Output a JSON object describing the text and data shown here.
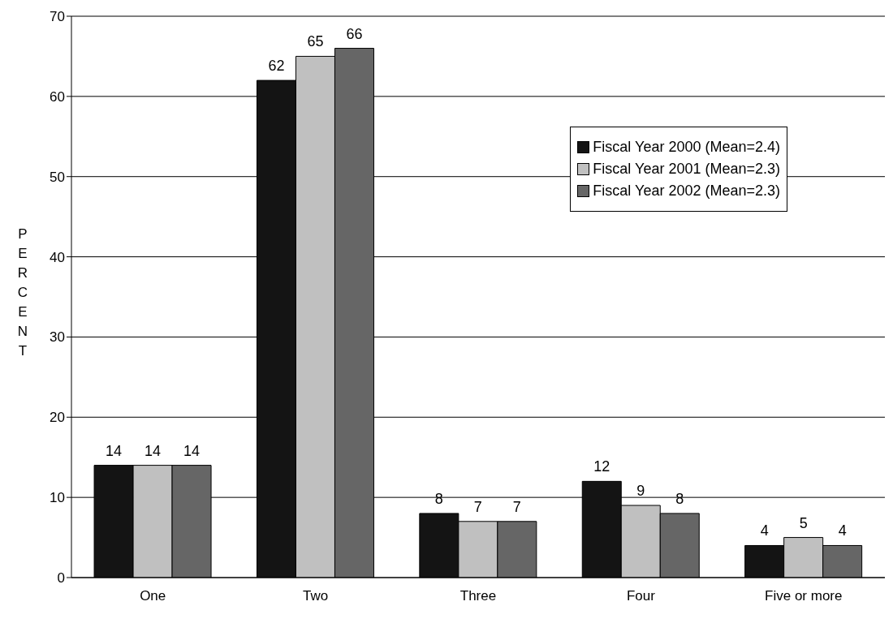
{
  "chart_data": {
    "type": "bar",
    "ylabel": "PERCENT",
    "categories": [
      "One",
      "Two",
      "Three",
      "Four",
      "Five or more"
    ],
    "series": [
      {
        "name": "Fiscal Year 2000 (Mean=2.4)",
        "color": "#141414",
        "values": [
          14,
          62,
          8,
          12,
          4
        ]
      },
      {
        "name": "Fiscal Year 2001 (Mean=2.3)",
        "color": "#c0c0c0",
        "values": [
          14,
          65,
          7,
          9,
          5
        ]
      },
      {
        "name": "Fiscal Year 2002 (Mean=2.3)",
        "color": "#666666",
        "values": [
          14,
          66,
          7,
          8,
          4
        ]
      }
    ],
    "ylim": [
      0,
      70
    ],
    "yticks": [
      0,
      10,
      20,
      30,
      40,
      50,
      60,
      70
    ],
    "grid": "y",
    "legend": "top right",
    "data_labels": true
  }
}
